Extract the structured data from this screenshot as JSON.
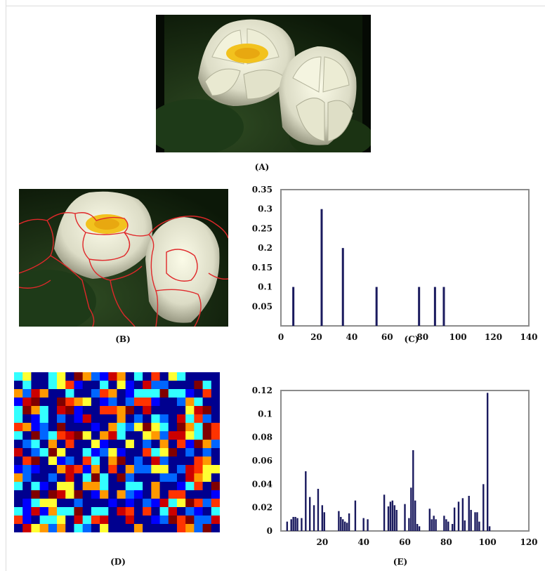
{
  "figure": {
    "captions": {
      "a": "(A)",
      "b": "(B)",
      "c": "(C)",
      "d": "(D)",
      "e": "(E)"
    }
  },
  "chart_data": [
    {
      "type": "bar",
      "id": "C",
      "x": [
        7,
        23,
        35,
        54,
        78,
        87,
        92
      ],
      "y": [
        0.1,
        0.3,
        0.2,
        0.1,
        0.1,
        0.1,
        0.1
      ],
      "xlim": [
        0,
        140
      ],
      "ylim": [
        0,
        0.35
      ],
      "xticks": [
        0,
        20,
        40,
        60,
        80,
        100,
        120,
        140
      ],
      "yticks": [
        0.05,
        0.1,
        0.15,
        0.2,
        0.25,
        0.3,
        0.35
      ],
      "xtick_labels": [
        "0",
        "20",
        "40",
        "60",
        "80",
        "100",
        "120",
        "140"
      ],
      "ytick_labels": [
        "0.05",
        "0.1",
        "0.15",
        "0.2",
        "0.25",
        "0.3",
        "0.35"
      ],
      "bar_color": "#1a1a5e",
      "grid": false
    },
    {
      "type": "bar",
      "id": "E",
      "x": [
        3,
        5,
        6,
        7,
        8,
        10,
        12,
        14,
        16,
        18,
        20,
        21,
        28,
        29,
        30,
        31,
        32,
        33,
        36,
        40,
        42,
        50,
        52,
        53,
        54,
        55,
        56,
        60,
        62,
        63,
        64,
        65,
        66,
        67,
        72,
        73,
        74,
        75,
        79,
        80,
        81,
        83,
        84,
        86,
        88,
        89,
        91,
        92,
        94,
        95,
        96,
        98,
        100,
        101
      ],
      "y": [
        0.008,
        0.01,
        0.012,
        0.012,
        0.011,
        0.011,
        0.051,
        0.029,
        0.022,
        0.036,
        0.022,
        0.016,
        0.017,
        0.012,
        0.01,
        0.008,
        0.007,
        0.015,
        0.026,
        0.011,
        0.01,
        0.031,
        0.021,
        0.025,
        0.026,
        0.022,
        0.018,
        0.023,
        0.011,
        0.037,
        0.069,
        0.026,
        0.006,
        0.004,
        0.019,
        0.01,
        0.013,
        0.01,
        0.013,
        0.01,
        0.008,
        0.006,
        0.02,
        0.025,
        0.028,
        0.009,
        0.03,
        0.018,
        0.016,
        0.016,
        0.008,
        0.04,
        0.118,
        0.004
      ],
      "xlim": [
        0,
        120
      ],
      "ylim": [
        0,
        0.12
      ],
      "xticks": [
        20,
        40,
        60,
        80,
        100,
        120
      ],
      "yticks": [
        0,
        0.02,
        0.04,
        0.06,
        0.08,
        0.1,
        0.12
      ],
      "xtick_labels": [
        "20",
        "40",
        "60",
        "80",
        "100",
        "120"
      ],
      "ytick_labels": [
        "0",
        "0.02",
        "0.04",
        "0.06",
        "0.08",
        "0.1",
        "0.12"
      ],
      "bar_color": "#1a1a5e",
      "grid": false
    }
  ],
  "colors": {
    "bar": "#1a1a5e",
    "boundary": "#e0282a",
    "axis": "#8c8c8c"
  },
  "icons": {
    "photo_a": "water-lily-photo",
    "photo_b": "segmented-water-lily-photo",
    "grid_d": "color-index-map"
  }
}
